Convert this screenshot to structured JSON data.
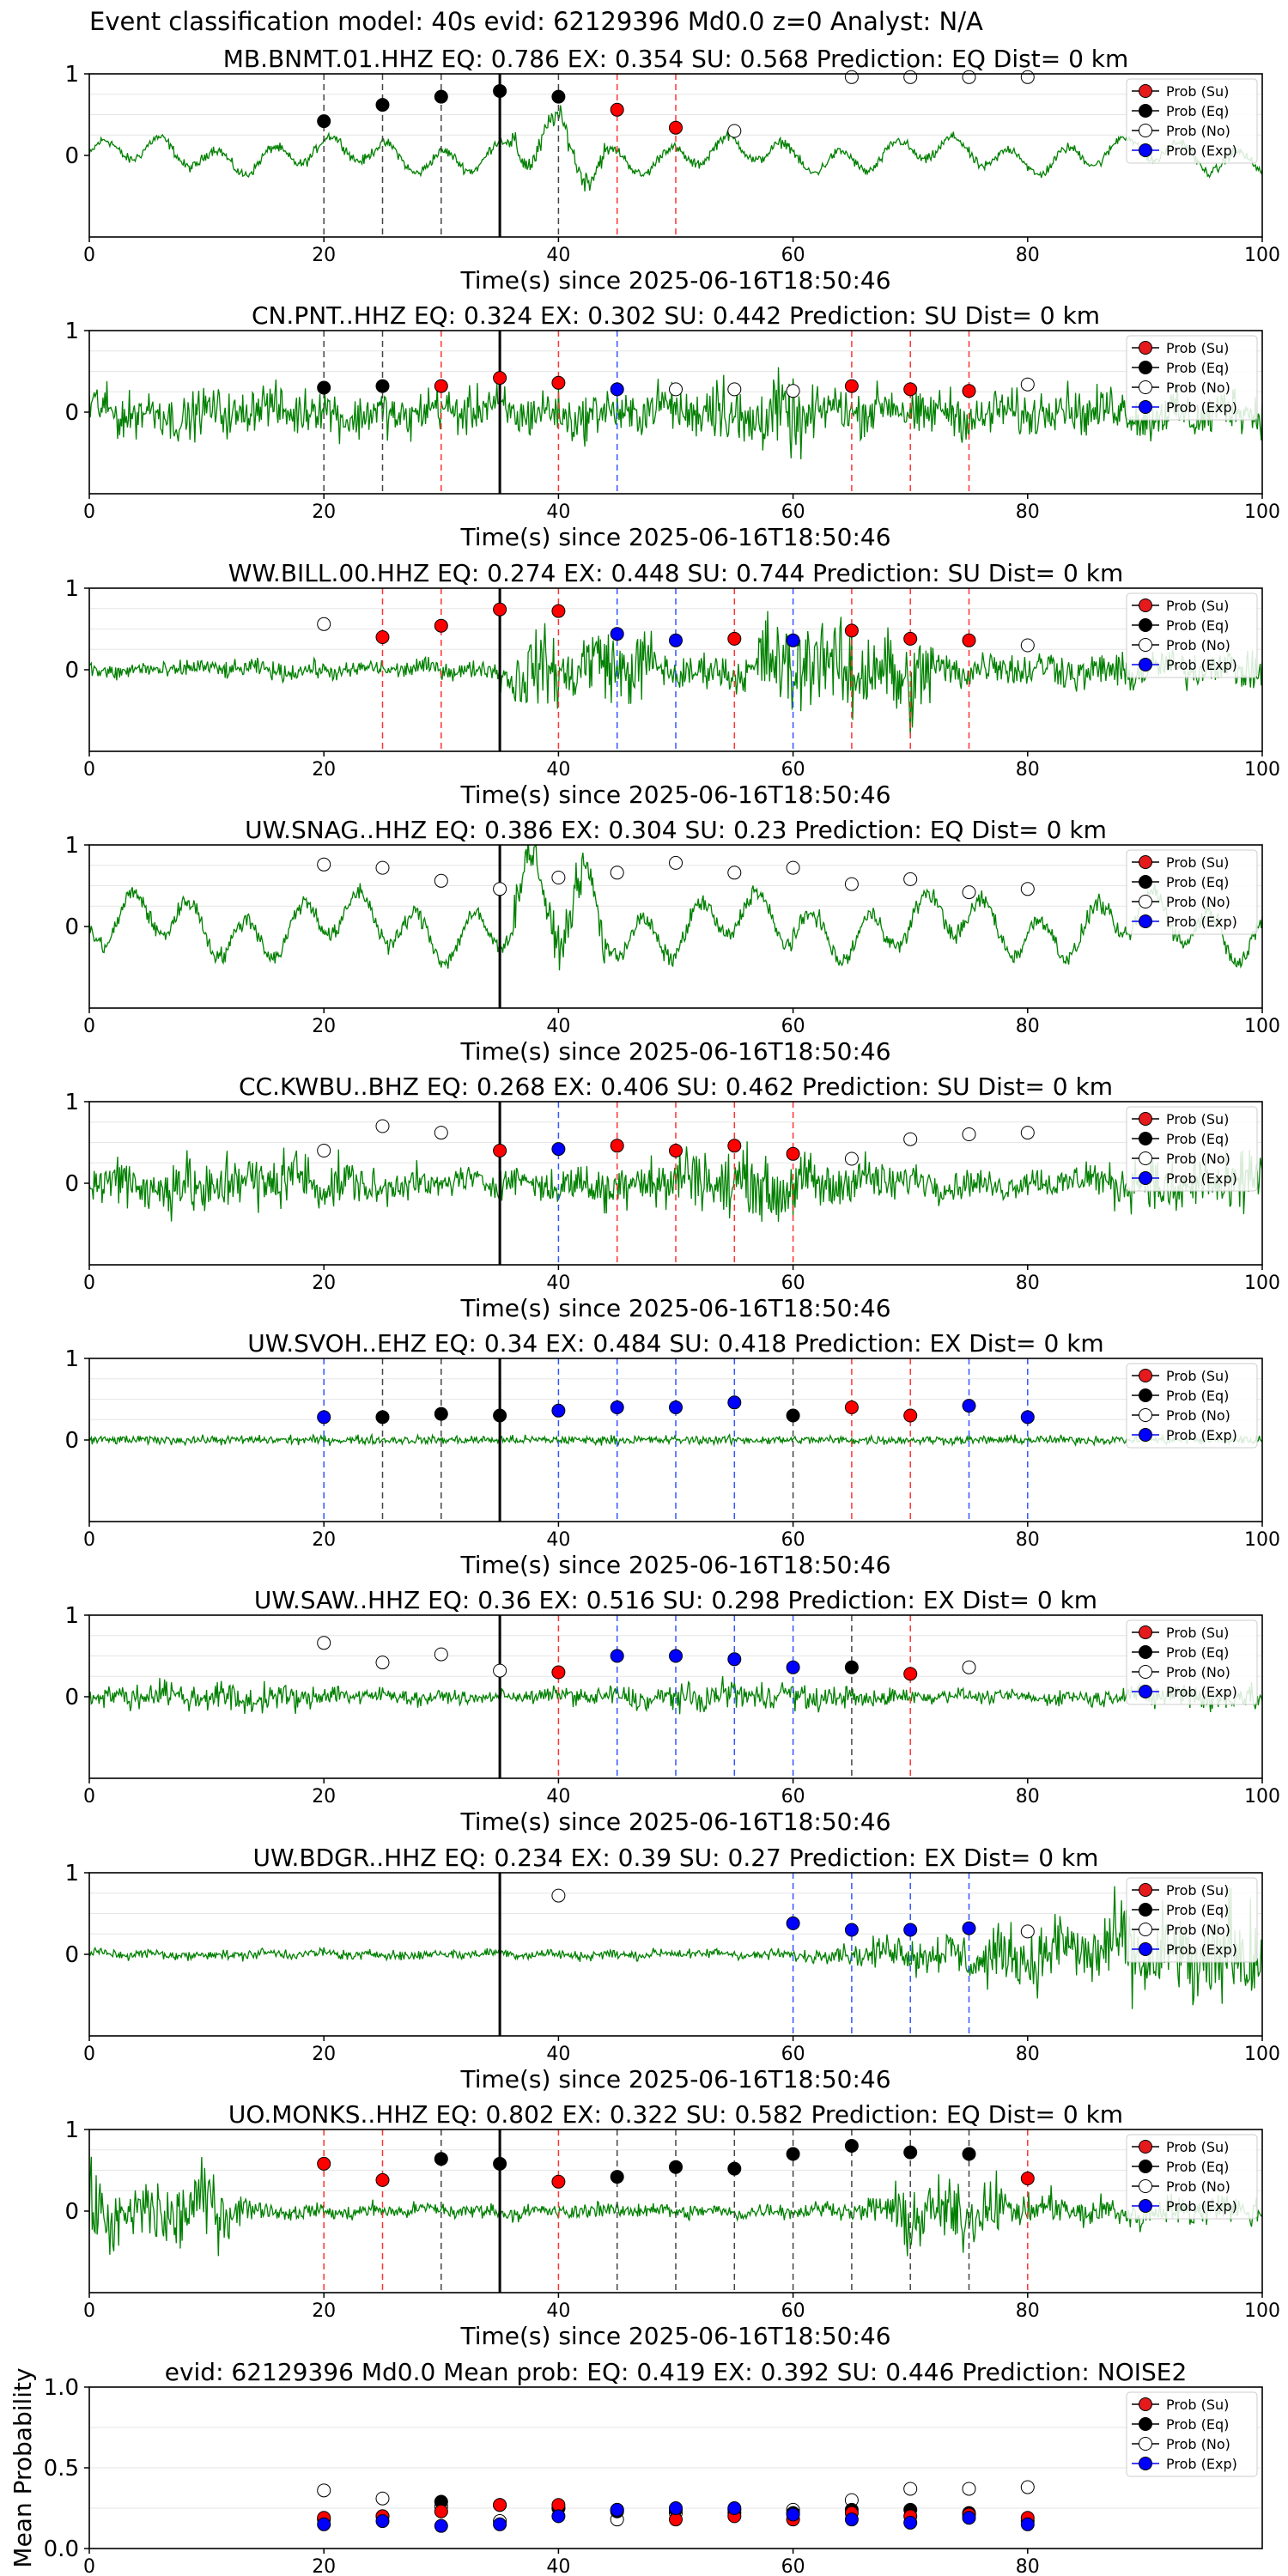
{
  "figure": {
    "title": "Event classification model: 40s evid: 62129396 Md0.0 z=0 Analyst: N/A",
    "x_label": "Time(s) since 2025-06-16T18:50:46"
  },
  "legend": [
    {
      "label": "Prob (Su)",
      "color": "#e41a1c"
    },
    {
      "label": "Prob (Eq)",
      "color": "#000000"
    },
    {
      "label": "Prob (No)",
      "color": "#ffffff"
    },
    {
      "label": "Prob (Exp)",
      "color": "#0000ff"
    }
  ],
  "colors": {
    "waveform": "#008000",
    "Su": "#ff0000",
    "Eq": "#000000",
    "No": "#ffffff",
    "Exp": "#0000ff"
  },
  "chart_data": [
    {
      "type": "line",
      "title": "MB.BNMT.01.HHZ   EQ: 0.786  EX: 0.354  SU: 0.568   Prediction: EQ    Dist= 0 km",
      "xlabel": "Time(s) since 2025-06-16T18:50:46",
      "xlim": [
        0,
        100
      ],
      "ylim": [
        -1,
        1
      ],
      "grid": true,
      "legend_position": "top-right",
      "x_ticks": [
        0,
        20,
        40,
        60,
        80,
        100
      ],
      "y_ticks": [
        0,
        1
      ],
      "pick_time": 35,
      "wave": {
        "amp": 0.3,
        "style": "lowfreq"
      },
      "points": [
        {
          "x": 20,
          "y": 0.42,
          "cls": "Eq"
        },
        {
          "x": 25,
          "y": 0.62,
          "cls": "Eq"
        },
        {
          "x": 30,
          "y": 0.72,
          "cls": "Eq"
        },
        {
          "x": 35,
          "y": 0.79,
          "cls": "Eq"
        },
        {
          "x": 40,
          "y": 0.72,
          "cls": "Eq"
        },
        {
          "x": 45,
          "y": 0.56,
          "cls": "Su"
        },
        {
          "x": 50,
          "y": 0.34,
          "cls": "Su"
        },
        {
          "x": 55,
          "y": 0.3,
          "cls": "No"
        },
        {
          "x": 65,
          "y": 0.96,
          "cls": "No"
        },
        {
          "x": 70,
          "y": 0.96,
          "cls": "No"
        },
        {
          "x": 75,
          "y": 0.96,
          "cls": "No"
        },
        {
          "x": 80,
          "y": 0.96,
          "cls": "No"
        }
      ]
    },
    {
      "type": "line",
      "title": "CN.PNT..HHZ   EQ: 0.324  EX: 0.302  SU: 0.442   Prediction: SU    Dist= 0 km",
      "xlabel": "Time(s) since 2025-06-16T18:50:46",
      "xlim": [
        0,
        100
      ],
      "ylim": [
        -1,
        1
      ],
      "grid": true,
      "legend_position": "top-right",
      "x_ticks": [
        0,
        20,
        40,
        60,
        80,
        100
      ],
      "y_ticks": [
        0,
        1
      ],
      "pick_time": 35,
      "wave": {
        "amp": 0.45,
        "style": "mixed"
      },
      "points": [
        {
          "x": 20,
          "y": 0.3,
          "cls": "Eq"
        },
        {
          "x": 25,
          "y": 0.32,
          "cls": "Eq"
        },
        {
          "x": 30,
          "y": 0.32,
          "cls": "Su"
        },
        {
          "x": 35,
          "y": 0.42,
          "cls": "Su"
        },
        {
          "x": 40,
          "y": 0.36,
          "cls": "Su"
        },
        {
          "x": 45,
          "y": 0.28,
          "cls": "Exp"
        },
        {
          "x": 50,
          "y": 0.28,
          "cls": "No"
        },
        {
          "x": 55,
          "y": 0.28,
          "cls": "No"
        },
        {
          "x": 60,
          "y": 0.26,
          "cls": "No"
        },
        {
          "x": 65,
          "y": 0.32,
          "cls": "Su"
        },
        {
          "x": 70,
          "y": 0.28,
          "cls": "Su"
        },
        {
          "x": 75,
          "y": 0.26,
          "cls": "Su"
        },
        {
          "x": 80,
          "y": 0.34,
          "cls": "No"
        }
      ]
    },
    {
      "type": "line",
      "title": "WW.BILL.00.HHZ   EQ: 0.274  EX: 0.448  SU: 0.744   Prediction: SU    Dist= 0 km",
      "xlabel": "Time(s) since 2025-06-16T18:50:46",
      "xlim": [
        0,
        100
      ],
      "ylim": [
        -1,
        1
      ],
      "grid": true,
      "legend_position": "top-right",
      "x_ticks": [
        0,
        20,
        40,
        60,
        80,
        100
      ],
      "y_ticks": [
        0,
        1
      ],
      "pick_time": 35,
      "wave": {
        "amp": 0.35,
        "style": "burst"
      },
      "points": [
        {
          "x": 20,
          "y": 0.56,
          "cls": "No"
        },
        {
          "x": 25,
          "y": 0.4,
          "cls": "Su"
        },
        {
          "x": 30,
          "y": 0.54,
          "cls": "Su"
        },
        {
          "x": 35,
          "y": 0.74,
          "cls": "Su"
        },
        {
          "x": 40,
          "y": 0.72,
          "cls": "Su"
        },
        {
          "x": 45,
          "y": 0.44,
          "cls": "Exp"
        },
        {
          "x": 50,
          "y": 0.36,
          "cls": "Exp"
        },
        {
          "x": 55,
          "y": 0.38,
          "cls": "Su"
        },
        {
          "x": 60,
          "y": 0.36,
          "cls": "Exp"
        },
        {
          "x": 65,
          "y": 0.48,
          "cls": "Su"
        },
        {
          "x": 70,
          "y": 0.38,
          "cls": "Su"
        },
        {
          "x": 75,
          "y": 0.36,
          "cls": "Su"
        },
        {
          "x": 80,
          "y": 0.3,
          "cls": "No"
        }
      ]
    },
    {
      "type": "line",
      "title": "UW.SNAG..HHZ   EQ: 0.386  EX: 0.304  SU: 0.23   Prediction: EQ    Dist= 0 km",
      "xlabel": "Time(s) since 2025-06-16T18:50:46",
      "xlim": [
        0,
        100
      ],
      "ylim": [
        -1,
        1
      ],
      "grid": true,
      "legend_position": "top-right",
      "x_ticks": [
        0,
        20,
        40,
        60,
        80,
        100
      ],
      "y_ticks": [
        0,
        1
      ],
      "pick_time": 35,
      "wave": {
        "amp": 0.55,
        "style": "lowfreq"
      },
      "points": [
        {
          "x": 20,
          "y": 0.76,
          "cls": "No"
        },
        {
          "x": 25,
          "y": 0.72,
          "cls": "No"
        },
        {
          "x": 30,
          "y": 0.56,
          "cls": "No"
        },
        {
          "x": 35,
          "y": 0.46,
          "cls": "No"
        },
        {
          "x": 40,
          "y": 0.6,
          "cls": "No"
        },
        {
          "x": 45,
          "y": 0.66,
          "cls": "No"
        },
        {
          "x": 50,
          "y": 0.78,
          "cls": "No"
        },
        {
          "x": 55,
          "y": 0.66,
          "cls": "No"
        },
        {
          "x": 60,
          "y": 0.72,
          "cls": "No"
        },
        {
          "x": 65,
          "y": 0.52,
          "cls": "No"
        },
        {
          "x": 70,
          "y": 0.58,
          "cls": "No"
        },
        {
          "x": 75,
          "y": 0.42,
          "cls": "No"
        },
        {
          "x": 80,
          "y": 0.46,
          "cls": "No"
        }
      ]
    },
    {
      "type": "line",
      "title": "CC.KWBU..BHZ   EQ: 0.268  EX: 0.406  SU: 0.462   Prediction: SU    Dist= 0 km",
      "xlabel": "Time(s) since 2025-06-16T18:50:46",
      "xlim": [
        0,
        100
      ],
      "ylim": [
        -1,
        1
      ],
      "grid": true,
      "legend_position": "top-right",
      "x_ticks": [
        0,
        20,
        40,
        60,
        80,
        100
      ],
      "y_ticks": [
        0,
        1
      ],
      "pick_time": 35,
      "wave": {
        "amp": 0.45,
        "style": "noisy"
      },
      "points": [
        {
          "x": 20,
          "y": 0.4,
          "cls": "No"
        },
        {
          "x": 25,
          "y": 0.7,
          "cls": "No"
        },
        {
          "x": 30,
          "y": 0.62,
          "cls": "No"
        },
        {
          "x": 35,
          "y": 0.4,
          "cls": "Su"
        },
        {
          "x": 40,
          "y": 0.42,
          "cls": "Exp"
        },
        {
          "x": 45,
          "y": 0.46,
          "cls": "Su"
        },
        {
          "x": 50,
          "y": 0.4,
          "cls": "Su"
        },
        {
          "x": 55,
          "y": 0.46,
          "cls": "Su"
        },
        {
          "x": 60,
          "y": 0.36,
          "cls": "Su"
        },
        {
          "x": 65,
          "y": 0.3,
          "cls": "No"
        },
        {
          "x": 70,
          "y": 0.54,
          "cls": "No"
        },
        {
          "x": 75,
          "y": 0.6,
          "cls": "No"
        },
        {
          "x": 80,
          "y": 0.62,
          "cls": "No"
        }
      ]
    },
    {
      "type": "line",
      "title": "UW.SVOH..EHZ   EQ: 0.34  EX: 0.484  SU: 0.418   Prediction: EX    Dist= 0 km",
      "xlabel": "Time(s) since 2025-06-16T18:50:46",
      "xlim": [
        0,
        100
      ],
      "ylim": [
        -1,
        1
      ],
      "grid": true,
      "legend_position": "top-right",
      "x_ticks": [
        0,
        20,
        40,
        60,
        80,
        100
      ],
      "y_ticks": [
        0,
        1
      ],
      "pick_time": 35,
      "wave": {
        "amp": 0.08,
        "style": "quiet"
      },
      "points": [
        {
          "x": 20,
          "y": 0.28,
          "cls": "Exp"
        },
        {
          "x": 25,
          "y": 0.28,
          "cls": "Eq"
        },
        {
          "x": 30,
          "y": 0.32,
          "cls": "Eq"
        },
        {
          "x": 35,
          "y": 0.3,
          "cls": "Eq"
        },
        {
          "x": 40,
          "y": 0.36,
          "cls": "Exp"
        },
        {
          "x": 45,
          "y": 0.4,
          "cls": "Exp"
        },
        {
          "x": 50,
          "y": 0.4,
          "cls": "Exp"
        },
        {
          "x": 55,
          "y": 0.46,
          "cls": "Exp"
        },
        {
          "x": 60,
          "y": 0.3,
          "cls": "Eq"
        },
        {
          "x": 65,
          "y": 0.4,
          "cls": "Su"
        },
        {
          "x": 70,
          "y": 0.3,
          "cls": "Su"
        },
        {
          "x": 75,
          "y": 0.42,
          "cls": "Exp"
        },
        {
          "x": 80,
          "y": 0.28,
          "cls": "Exp"
        }
      ]
    },
    {
      "type": "line",
      "title": "UW.SAW..HHZ   EQ: 0.36  EX: 0.516  SU: 0.298   Prediction: EX    Dist= 0 km",
      "xlabel": "Time(s) since 2025-06-16T18:50:46",
      "xlim": [
        0,
        100
      ],
      "ylim": [
        -1,
        1
      ],
      "grid": true,
      "legend_position": "top-right",
      "x_ticks": [
        0,
        20,
        40,
        60,
        80,
        100
      ],
      "y_ticks": [
        0,
        1
      ],
      "pick_time": 35,
      "wave": {
        "amp": 0.2,
        "style": "noisy"
      },
      "points": [
        {
          "x": 20,
          "y": 0.66,
          "cls": "No"
        },
        {
          "x": 25,
          "y": 0.42,
          "cls": "No"
        },
        {
          "x": 30,
          "y": 0.52,
          "cls": "No"
        },
        {
          "x": 35,
          "y": 0.32,
          "cls": "No"
        },
        {
          "x": 40,
          "y": 0.3,
          "cls": "Su"
        },
        {
          "x": 45,
          "y": 0.5,
          "cls": "Exp"
        },
        {
          "x": 50,
          "y": 0.5,
          "cls": "Exp"
        },
        {
          "x": 55,
          "y": 0.46,
          "cls": "Exp"
        },
        {
          "x": 60,
          "y": 0.36,
          "cls": "Exp"
        },
        {
          "x": 65,
          "y": 0.36,
          "cls": "Eq"
        },
        {
          "x": 70,
          "y": 0.28,
          "cls": "Su"
        },
        {
          "x": 75,
          "y": 0.36,
          "cls": "No"
        }
      ]
    },
    {
      "type": "line",
      "title": "UW.BDGR..HHZ   EQ: 0.234  EX: 0.39  SU: 0.27   Prediction: EX    Dist= 0 km",
      "xlabel": "Time(s) since 2025-06-16T18:50:46",
      "xlim": [
        0,
        100
      ],
      "ylim": [
        -1,
        1
      ],
      "grid": true,
      "legend_position": "top-right",
      "x_ticks": [
        0,
        20,
        40,
        60,
        80,
        100
      ],
      "y_ticks": [
        0,
        1
      ],
      "pick_time": 35,
      "wave": {
        "amp": 0.1,
        "style": "growing"
      },
      "points": [
        {
          "x": 40,
          "y": 0.72,
          "cls": "No"
        },
        {
          "x": 60,
          "y": 0.38,
          "cls": "Exp"
        },
        {
          "x": 65,
          "y": 0.3,
          "cls": "Exp"
        },
        {
          "x": 70,
          "y": 0.3,
          "cls": "Exp"
        },
        {
          "x": 75,
          "y": 0.32,
          "cls": "Exp"
        },
        {
          "x": 80,
          "y": 0.28,
          "cls": "No"
        }
      ]
    },
    {
      "type": "line",
      "title": "UO.MONKS..HHZ   EQ: 0.802  EX: 0.322  SU: 0.582   Prediction: EQ    Dist= 0 km",
      "xlabel": "Time(s) since 2025-06-16T18:50:46",
      "xlim": [
        0,
        100
      ],
      "ylim": [
        -1,
        1
      ],
      "grid": true,
      "legend_position": "top-right",
      "x_ticks": [
        0,
        20,
        40,
        60,
        80,
        100
      ],
      "y_ticks": [
        0,
        1
      ],
      "pick_time": 35,
      "wave": {
        "amp": 0.3,
        "style": "burst2"
      },
      "points": [
        {
          "x": 20,
          "y": 0.58,
          "cls": "Su"
        },
        {
          "x": 25,
          "y": 0.38,
          "cls": "Su"
        },
        {
          "x": 30,
          "y": 0.64,
          "cls": "Eq"
        },
        {
          "x": 35,
          "y": 0.58,
          "cls": "Eq"
        },
        {
          "x": 40,
          "y": 0.36,
          "cls": "Su"
        },
        {
          "x": 45,
          "y": 0.42,
          "cls": "Eq"
        },
        {
          "x": 50,
          "y": 0.54,
          "cls": "Eq"
        },
        {
          "x": 55,
          "y": 0.52,
          "cls": "Eq"
        },
        {
          "x": 60,
          "y": 0.7,
          "cls": "Eq"
        },
        {
          "x": 65,
          "y": 0.8,
          "cls": "Eq"
        },
        {
          "x": 70,
          "y": 0.72,
          "cls": "Eq"
        },
        {
          "x": 75,
          "y": 0.7,
          "cls": "Eq"
        },
        {
          "x": 80,
          "y": 0.4,
          "cls": "Su"
        }
      ]
    },
    {
      "type": "scatter",
      "title": "evid: 62129396  Md0.0   Mean prob:    EQ: 0.419  EX: 0.392  SU: 0.446   Prediction: NOISE2",
      "ylabel": "Mean Probability",
      "xlim": [
        0,
        100
      ],
      "ylim": [
        0,
        1
      ],
      "grid": true,
      "legend_position": "top-right",
      "x_ticks": [
        0,
        20,
        40,
        60,
        80
      ],
      "y_ticks": [
        "0.0",
        "0.5",
        "1.0"
      ],
      "x": [
        20,
        25,
        30,
        35,
        40,
        45,
        50,
        55,
        60,
        65,
        70,
        75,
        80
      ],
      "series": [
        {
          "name": "Prob (No)",
          "cls": "No",
          "values": [
            0.36,
            0.31,
            0.26,
            0.17,
            0.25,
            0.18,
            0.22,
            0.24,
            0.24,
            0.3,
            0.37,
            0.37,
            0.38
          ]
        },
        {
          "name": "Prob (Eq)",
          "cls": "Eq",
          "values": [
            0.18,
            0.2,
            0.29,
            0.27,
            0.25,
            0.23,
            0.24,
            0.22,
            0.22,
            0.24,
            0.24,
            0.22,
            0.17
          ]
        },
        {
          "name": "Prob (Su)",
          "cls": "Su",
          "values": [
            0.19,
            0.2,
            0.23,
            0.27,
            0.27,
            0.24,
            0.18,
            0.2,
            0.18,
            0.22,
            0.2,
            0.21,
            0.19
          ]
        },
        {
          "name": "Prob (Exp)",
          "cls": "Exp",
          "values": [
            0.15,
            0.17,
            0.14,
            0.15,
            0.2,
            0.24,
            0.25,
            0.25,
            0.21,
            0.18,
            0.16,
            0.19,
            0.15
          ]
        }
      ]
    }
  ]
}
